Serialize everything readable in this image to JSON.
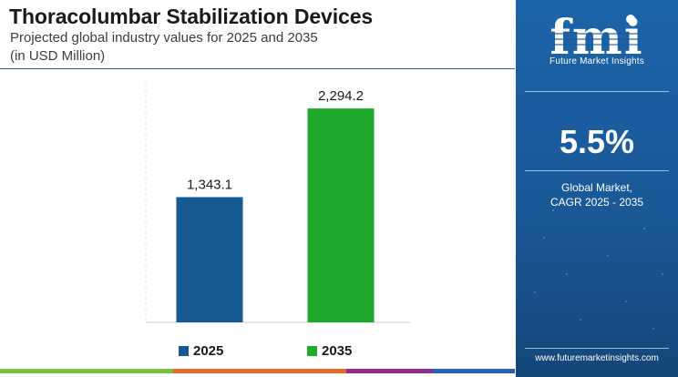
{
  "header": {
    "title": "Thoracolumbar Stabilization Devices",
    "subtitle": "Projected global industry values for 2025 and 2035",
    "units": "(in USD Million)"
  },
  "chart_data": {
    "type": "bar",
    "categories": [
      "2025",
      "2035"
    ],
    "values": [
      1343.1,
      2294.2
    ],
    "value_labels": [
      "1,343.1",
      "2,294.2"
    ],
    "colors": [
      "#175a91",
      "#1faa2e"
    ],
    "title": "Thoracolumbar Stabilization Devices",
    "subtitle": "Projected global industry values for 2025 and 2035",
    "xlabel": "",
    "ylabel": "",
    "ylim": [
      0,
      2500
    ],
    "grid": false,
    "legend": {
      "placement": "bottom",
      "entries": [
        "2025",
        "2035"
      ]
    }
  },
  "sidebar": {
    "logo_text": "fmi",
    "logo_caption": "Future Market Insights",
    "cagr_value": "5.5%",
    "cagr_label_line1": "Global Market,",
    "cagr_label_line2": "CAGR 2025 - 2035",
    "website": "www.futuremarketinsights.com",
    "background_color": "#1a5c9c"
  },
  "bottom_strip_colors": [
    "#7cc242",
    "#e8692a",
    "#8a2f8c",
    "#2a64b0"
  ]
}
